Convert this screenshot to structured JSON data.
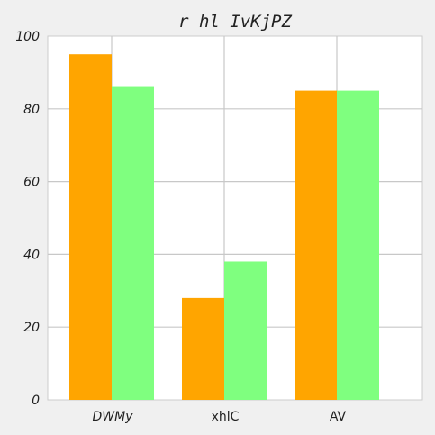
{
  "chart_data": {
    "type": "bar",
    "title": "r hl IvKjPZ",
    "xlabel": "",
    "ylabel": "",
    "categories": [
      "DWMy",
      "xhlC",
      "AV"
    ],
    "series": [
      {
        "values": [
          95,
          28,
          85
        ],
        "color": "#ffa500"
      },
      {
        "values": [
          86,
          38,
          85
        ],
        "color": "#7fff7f"
      }
    ],
    "ylim": [
      0,
      100
    ],
    "yticks": [
      "0",
      "20",
      "40",
      "60",
      "80",
      "100"
    ],
    "grid": true,
    "background": "#ffffff",
    "page_background": "#f0f0f0"
  }
}
